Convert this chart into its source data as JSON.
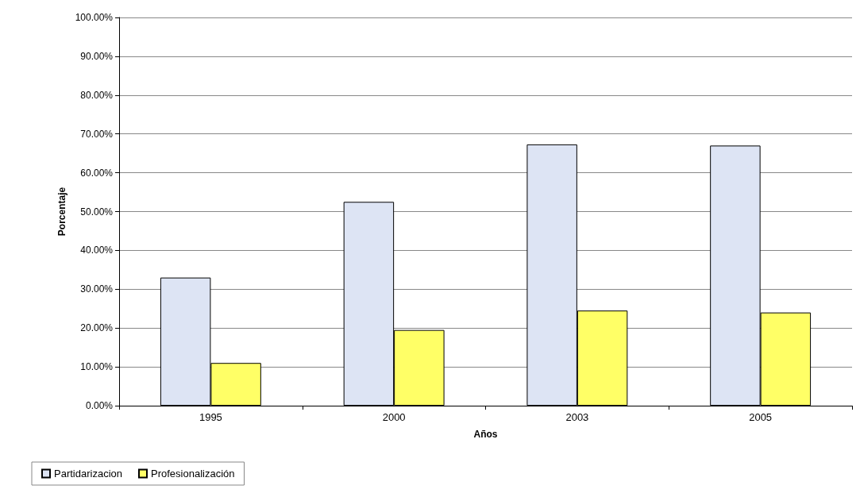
{
  "chart_data": {
    "type": "bar",
    "xlabel": "Años",
    "ylabel": "Porcentaje",
    "categories": [
      "1995",
      "2000",
      "2003",
      "2005"
    ],
    "series": [
      {
        "name": "Partidarizacion",
        "color": "#dde4f4",
        "values": [
          33,
          52.5,
          67.3,
          67
        ]
      },
      {
        "name": "Profesionalización",
        "color": "#ffff66",
        "values": [
          11,
          19.5,
          24.5,
          24
        ]
      }
    ],
    "ylim": [
      0,
      100
    ],
    "yticks": [
      {
        "value": 0,
        "label": "0.00%"
      },
      {
        "value": 10,
        "label": "10.00%"
      },
      {
        "value": 20,
        "label": "20.00%"
      },
      {
        "value": 30,
        "label": "30.00%"
      },
      {
        "value": 40,
        "label": "40.00%"
      },
      {
        "value": 50,
        "label": "50.00%"
      },
      {
        "value": 60,
        "label": "60.00%"
      },
      {
        "value": 70,
        "label": "70.00%"
      },
      {
        "value": 80,
        "label": "80.00%"
      },
      {
        "value": 90,
        "label": "90.00%"
      },
      {
        "value": 100,
        "label": "100.00%"
      }
    ],
    "grid": "y",
    "legend": "bottom left"
  }
}
